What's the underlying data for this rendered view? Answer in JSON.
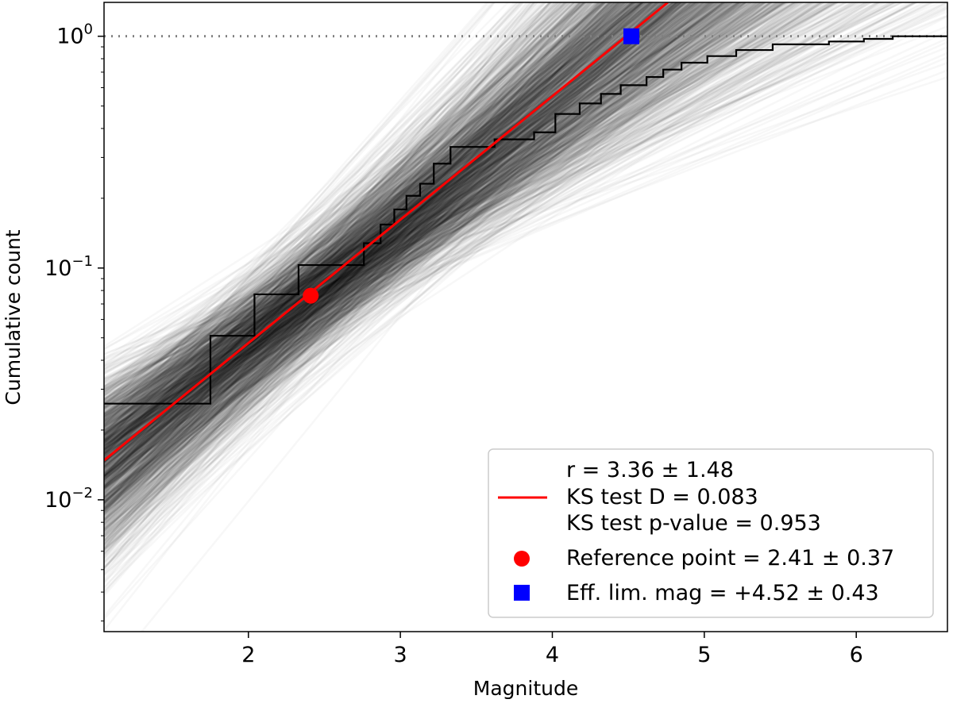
{
  "chart_data": {
    "type": "line",
    "xlabel": "Magnitude",
    "ylabel": "Cumulative count",
    "xlim": [
      1.05,
      6.6
    ],
    "ylim": [
      0.0027,
      1.4
    ],
    "yscale": "log",
    "grid": false,
    "x_ticks": [
      "2",
      "3",
      "4",
      "5",
      "6"
    ],
    "y_ticks": [
      {
        "value": 1,
        "base": "10",
        "exp": "0"
      },
      {
        "value": 0.1,
        "base": "10",
        "exp": "−1"
      },
      {
        "value": 0.01,
        "base": "10",
        "exp": "−2"
      }
    ],
    "reference_line": {
      "y": 1.0,
      "style": "dotted",
      "color": "#808080"
    },
    "series": [
      {
        "kind": "step",
        "color": "#000000",
        "x": [
          1.05,
          1.75,
          1.75,
          2.04,
          2.04,
          2.33,
          2.33,
          2.76,
          2.76,
          2.87,
          2.87,
          2.96,
          2.96,
          3.04,
          3.04,
          3.13,
          3.13,
          3.22,
          3.22,
          3.33,
          3.33,
          3.62,
          3.62,
          3.88,
          3.88,
          4.02,
          4.02,
          4.18,
          4.18,
          4.32,
          4.32,
          4.45,
          4.45,
          4.62,
          4.62,
          4.73,
          4.73,
          4.85,
          4.85,
          5.02,
          5.02,
          5.21,
          5.21,
          5.45,
          5.45,
          5.82,
          5.82,
          6.05,
          6.05,
          6.24,
          6.24,
          6.6
        ],
        "y": [
          0.026,
          0.026,
          0.051,
          0.051,
          0.077,
          0.077,
          0.103,
          0.103,
          0.128,
          0.128,
          0.154,
          0.154,
          0.179,
          0.179,
          0.205,
          0.205,
          0.231,
          0.231,
          0.282,
          0.282,
          0.333,
          0.333,
          0.359,
          0.359,
          0.385,
          0.385,
          0.462,
          0.462,
          0.513,
          0.513,
          0.564,
          0.564,
          0.615,
          0.615,
          0.667,
          0.667,
          0.718,
          0.718,
          0.769,
          0.769,
          0.821,
          0.821,
          0.872,
          0.872,
          0.923,
          0.923,
          0.949,
          0.949,
          0.974,
          0.974,
          1.0,
          1.0
        ]
      },
      {
        "kind": "line",
        "color": "#ff0000",
        "x": [
          1.05,
          4.76
        ],
        "y": [
          0.0148,
          1.4
        ]
      },
      {
        "kind": "envelope",
        "color": "#000000",
        "count": 1500
      }
    ],
    "markers": [
      {
        "shape": "circle",
        "color": "#ff0000",
        "x": 2.41,
        "y": 0.076
      },
      {
        "shape": "square",
        "color": "#0000ff",
        "x": 4.52,
        "y": 1.0
      }
    ],
    "legend": {
      "placement": "lower-right",
      "entries": [
        {
          "marker": "line",
          "color": "#ff0000",
          "lines": [
            "r = 3.36 ± 1.48",
            "KS test D = 0.083",
            "KS test p-value = 0.953"
          ]
        },
        {
          "marker": "circle",
          "color": "#ff0000",
          "lines": [
            "Reference point = 2.41 ± 0.37"
          ]
        },
        {
          "marker": "square",
          "color": "#0000ff",
          "lines": [
            "Eff. lim. mag = +4.52 ± 0.43"
          ]
        }
      ]
    }
  }
}
